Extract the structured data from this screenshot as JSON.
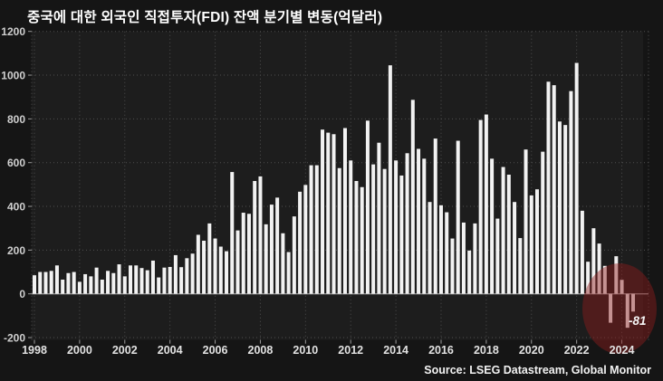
{
  "title": "중국에 대한 외국인 직접투자(FDI) 잔액 분기별 변동(억달러)",
  "source": "Source: LSEG Datastream, Global Monitor",
  "colors": {
    "background": "#151515",
    "plot_background": "#1d1d1d",
    "bar": "#f2f2f2",
    "grid": "#4f4f4f",
    "zero_line": "#8d8d8d",
    "tick": "#9a9a9a",
    "y_label": "#cfcfcf",
    "x_label": "#e2e2e2",
    "highlight_circle": "#8d1c1c",
    "text": "#f0f0f0"
  },
  "chart_data": {
    "type": "bar",
    "title": "중국에 대한 외국인 직접투자(FDI) 잔액 분기별 변동(억달러)",
    "unit": "억달러",
    "frequency": "quarterly",
    "start_quarter": "1998Q1",
    "end_quarter": "2024Q3",
    "ylim": [
      -200,
      1200
    ],
    "yticks": [
      -200,
      0,
      200,
      400,
      600,
      800,
      1000,
      1200
    ],
    "xticks": [
      1998,
      2000,
      2002,
      2004,
      2006,
      2008,
      2010,
      2012,
      2014,
      2016,
      2018,
      2020,
      2022,
      2024
    ],
    "grid": "dotted",
    "by_year": [
      {
        "year": 1998,
        "q": [
          85,
          100,
          100,
          105
        ]
      },
      {
        "year": 1999,
        "q": [
          130,
          65,
          95,
          100
        ]
      },
      {
        "year": 2000,
        "q": [
          55,
          90,
          80,
          120
        ]
      },
      {
        "year": 2001,
        "q": [
          65,
          105,
          95,
          135
        ]
      },
      {
        "year": 2002,
        "q": [
          80,
          130,
          130,
          118
        ]
      },
      {
        "year": 2003,
        "q": [
          108,
          152,
          75,
          120
        ]
      },
      {
        "year": 2004,
        "q": [
          123,
          177,
          122,
          163
        ]
      },
      {
        "year": 2005,
        "q": [
          184,
          270,
          243,
          322
        ]
      },
      {
        "year": 2006,
        "q": [
          253,
          216,
          195,
          557
        ]
      },
      {
        "year": 2007,
        "q": [
          290,
          371,
          366,
          516
        ]
      },
      {
        "year": 2008,
        "q": [
          537,
          318,
          408,
          440
        ]
      },
      {
        "year": 2009,
        "q": [
          277,
          191,
          354,
          467
        ]
      },
      {
        "year": 2010,
        "q": [
          498,
          588,
          588,
          751
        ]
      },
      {
        "year": 2011,
        "q": [
          737,
          730,
          575,
          758
        ]
      },
      {
        "year": 2012,
        "q": [
          610,
          516,
          488,
          792
        ]
      },
      {
        "year": 2013,
        "q": [
          592,
          691,
          571,
          1045
        ]
      },
      {
        "year": 2014,
        "q": [
          610,
          541,
          643,
          887
        ]
      },
      {
        "year": 2015,
        "q": [
          663,
          618,
          420,
          710
        ]
      },
      {
        "year": 2016,
        "q": [
          405,
          373,
          253,
          700
        ]
      },
      {
        "year": 2017,
        "q": [
          326,
          198,
          322,
          795
        ]
      },
      {
        "year": 2018,
        "q": [
          820,
          618,
          344,
          580
        ]
      },
      {
        "year": 2019,
        "q": [
          545,
          420,
          255,
          660
        ]
      },
      {
        "year": 2020,
        "q": [
          450,
          478,
          650,
          970
        ]
      },
      {
        "year": 2021,
        "q": [
          954,
          788,
          772,
          927
        ]
      },
      {
        "year": 2022,
        "q": [
          1056,
          380,
          147,
          300
        ]
      },
      {
        "year": 2023,
        "q": [
          230,
          128,
          -132,
          172
        ]
      },
      {
        "year": 2024,
        "q": [
          64,
          -155,
          -81
        ]
      }
    ],
    "highlight": {
      "shape": "circle",
      "color": "#8d1c1c",
      "opacity": 0.45,
      "covers": "2022Q4-2024Q3",
      "annotation": "-81",
      "annotated_quarter": "2024Q3"
    }
  }
}
